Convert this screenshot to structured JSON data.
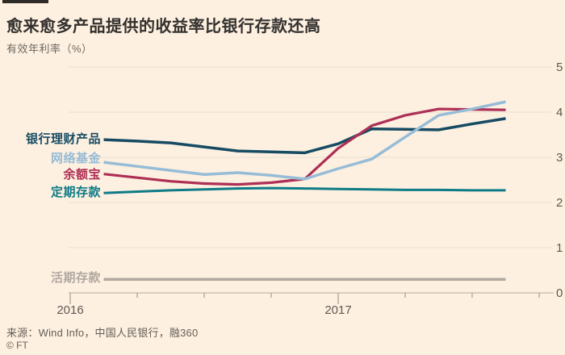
{
  "header": {
    "title": "愈来愈多产品提供的收益率比银行存款还高",
    "subtitle": "有效年利率（%）"
  },
  "footer": {
    "source": "来源：Wind Info，中国人民银行，融360",
    "copyright": "© FT"
  },
  "colors": {
    "background": "#fdf0e0",
    "title_text": "#33302e",
    "muted_text": "#6e6760",
    "axis_text": "#5f5954",
    "gridline": "#e9ded1",
    "axis_line": "#c3b8aa",
    "tick": "#a69c8f",
    "accent_bar": "#2e2a26"
  },
  "chart_data": {
    "type": "line",
    "title": "愈来愈多产品提供的收益率比银行存款还高",
    "ylabel": "有效年利率（%）",
    "unit": "%",
    "legend_position": "left-of-lines",
    "grid": "horizontal",
    "x_axis": {
      "start_year": "2016",
      "major_ticks": [
        {
          "month": 0,
          "label": "2016"
        },
        {
          "month": 12,
          "label": "2017"
        }
      ],
      "minor_tick_months": [
        3,
        6,
        9,
        15,
        18,
        21
      ]
    },
    "y_axis": {
      "min": 0,
      "max": 5,
      "ticks": [
        "0",
        "1",
        "2",
        "3",
        "4",
        "5"
      ],
      "side": "right"
    },
    "x_months": [
      1.5,
      3,
      4.5,
      6,
      7.5,
      9,
      10.5,
      12,
      13.5,
      15,
      16.5,
      18,
      19.5
    ],
    "series": [
      {
        "id": "bank-wmp",
        "name": "银行理财产品",
        "color": "#164b63",
        "width": 3.5,
        "values": [
          3.39,
          3.36,
          3.32,
          3.23,
          3.14,
          3.12,
          3.1,
          3.3,
          3.63,
          3.62,
          3.61,
          3.74,
          3.86
        ]
      },
      {
        "id": "online-funds",
        "name": "网络基金",
        "color": "#96bcd7",
        "width": 3.5,
        "values": [
          2.89,
          2.8,
          2.71,
          2.62,
          2.66,
          2.6,
          2.52,
          2.75,
          2.96,
          3.45,
          3.93,
          4.07,
          4.23
        ]
      },
      {
        "id": "yuebao",
        "name": "余额宝",
        "color": "#ad2f55",
        "width": 3.2,
        "values": [
          2.63,
          2.55,
          2.47,
          2.42,
          2.4,
          2.44,
          2.52,
          3.2,
          3.7,
          3.93,
          4.07,
          4.06,
          4.05
        ]
      },
      {
        "id": "time-deposit",
        "name": "定期存款",
        "color": "#0e7b87",
        "width": 3.0,
        "values": [
          2.21,
          2.24,
          2.27,
          2.29,
          2.31,
          2.32,
          2.31,
          2.3,
          2.29,
          2.28,
          2.28,
          2.27,
          2.27
        ]
      },
      {
        "id": "demand-deposit",
        "name": "活期存款",
        "color": "#b1a8a0",
        "width": 3.5,
        "values": [
          0.3,
          0.3,
          0.3,
          0.3,
          0.3,
          0.3,
          0.3,
          0.3,
          0.3,
          0.3,
          0.3,
          0.3,
          0.3
        ]
      }
    ]
  }
}
